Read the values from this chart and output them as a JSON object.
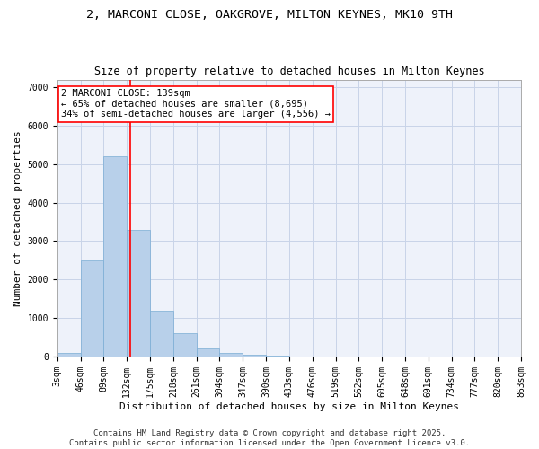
{
  "title": "2, MARCONI CLOSE, OAKGROVE, MILTON KEYNES, MK10 9TH",
  "subtitle": "Size of property relative to detached houses in Milton Keynes",
  "xlabel": "Distribution of detached houses by size in Milton Keynes",
  "ylabel": "Number of detached properties",
  "bin_edges": [
    3,
    46,
    89,
    132,
    175,
    218,
    261,
    304,
    347,
    390,
    433,
    476,
    519,
    562,
    605,
    648,
    691,
    734,
    777,
    820,
    863
  ],
  "bar_heights": [
    100,
    2500,
    5200,
    3300,
    1200,
    600,
    200,
    100,
    50,
    20,
    10,
    5,
    3,
    2,
    1,
    1,
    0,
    0,
    0,
    0
  ],
  "bar_color": "#b8d0ea",
  "bar_edgecolor": "#7aadd4",
  "vline_x": 139,
  "vline_color": "red",
  "annotation_line1": "2 MARCONI CLOSE: 139sqm",
  "annotation_line2": "← 65% of detached houses are smaller (8,695)",
  "annotation_line3": "34% of semi-detached houses are larger (4,556) →",
  "ylim": [
    0,
    7200
  ],
  "xlim": [
    3,
    863
  ],
  "yticks": [
    0,
    1000,
    2000,
    3000,
    4000,
    5000,
    6000,
    7000
  ],
  "grid_color": "#c8d4e8",
  "background_color": "#eef2fa",
  "footer_line1": "Contains HM Land Registry data © Crown copyright and database right 2025.",
  "footer_line2": "Contains public sector information licensed under the Open Government Licence v3.0.",
  "title_fontsize": 9.5,
  "subtitle_fontsize": 8.5,
  "axis_label_fontsize": 8,
  "tick_fontsize": 7,
  "annotation_fontsize": 7.5,
  "footer_fontsize": 6.5
}
